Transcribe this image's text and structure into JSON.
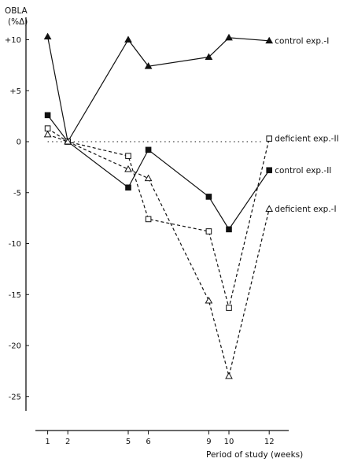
{
  "chart_data": {
    "type": "line",
    "ylabel": "OBLA",
    "ylabel_unit": "(%Δ)",
    "xlabel": "Period of study (weeks)",
    "x": [
      1,
      2,
      5,
      6,
      9,
      10,
      12
    ],
    "x_tick_labels": [
      "1",
      "2",
      "5",
      "6",
      "9",
      "10",
      "12"
    ],
    "y_tick_labels": [
      "+10",
      "+5",
      "0",
      "-5",
      "-10",
      "-15",
      "-20",
      "-25"
    ],
    "y_ticks": [
      10,
      5,
      0,
      -5,
      -10,
      -15,
      -20,
      -25
    ],
    "xlim": [
      0,
      13
    ],
    "ylim": [
      -27,
      12
    ],
    "zero_reference_line": true,
    "series": [
      {
        "name": "control exp.-I",
        "marker": "filled-triangle",
        "line": "solid",
        "values": [
          10.3,
          0,
          10.0,
          7.4,
          8.3,
          10.2,
          9.9
        ]
      },
      {
        "name": "control exp.-II",
        "marker": "filled-square",
        "line": "solid",
        "values": [
          2.6,
          0,
          -4.5,
          -0.8,
          -5.4,
          -8.6,
          -2.8
        ]
      },
      {
        "name": "deficient exp.-II",
        "marker": "open-square",
        "line": "dashed",
        "values": [
          1.3,
          0,
          -1.4,
          -7.6,
          -8.8,
          -16.3,
          0.3
        ]
      },
      {
        "name": "deficient exp.-I",
        "marker": "open-triangle",
        "line": "dashed",
        "values": [
          0.7,
          0,
          -2.7,
          -3.6,
          -15.6,
          -23.0,
          -6.6
        ]
      }
    ]
  }
}
